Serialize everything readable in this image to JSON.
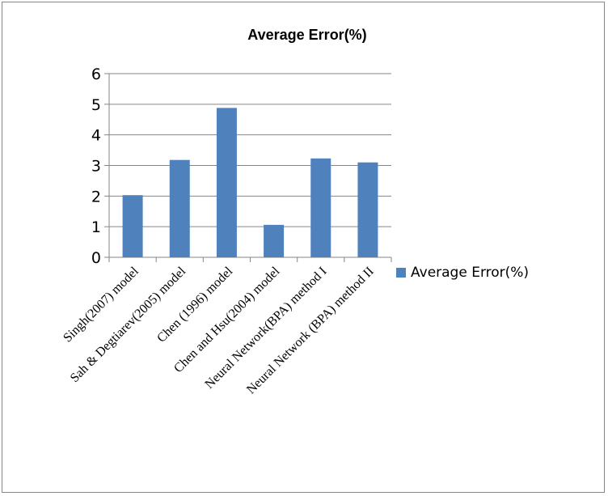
{
  "chart_data": {
    "type": "bar",
    "title": "Average Error(%)",
    "categories": [
      "Singh(2007) model",
      "Sah & Degtiarev(2005) model",
      "Chen (1996)  model",
      "Chen and Hsu(2004) model",
      "Neural Network(BPA) method I",
      "Neural Network (BPA) method II"
    ],
    "series": [
      {
        "name": "Average Error(%)",
        "values": [
          2.03,
          3.18,
          4.88,
          1.06,
          3.23,
          3.1
        ]
      }
    ],
    "ylim": [
      0,
      6
    ],
    "yticks": [
      "0",
      "1",
      "2",
      "3",
      "4",
      "5",
      "6"
    ],
    "grid": true,
    "legend": "right",
    "color": "#4F81BD"
  }
}
